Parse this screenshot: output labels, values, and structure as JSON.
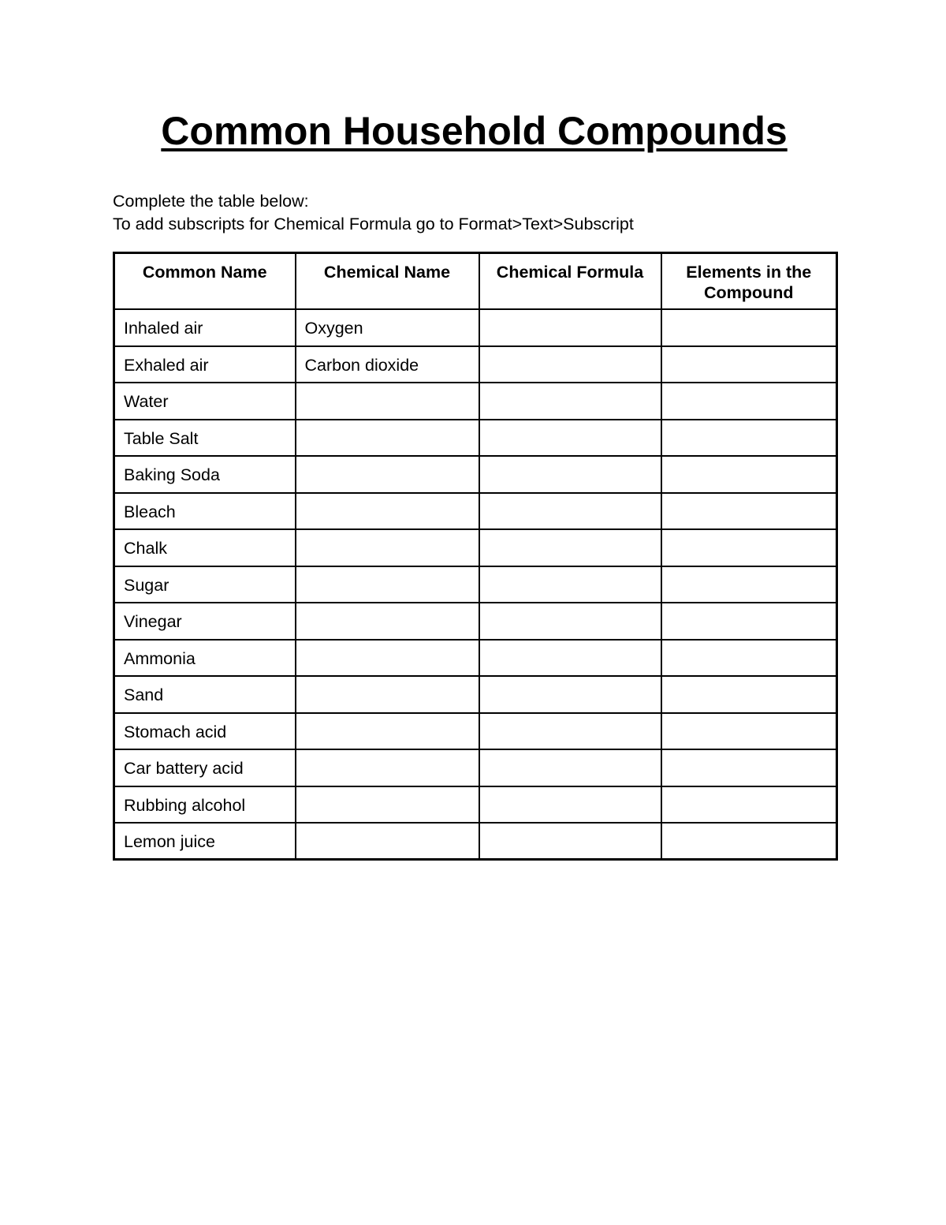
{
  "document": {
    "title": "Common Household Compounds",
    "instruction_line1": "Complete the table below:",
    "instruction_line2": "To add subscripts for Chemical Formula go to Format>Text>Subscript"
  },
  "table": {
    "headers": [
      "Common Name",
      "Chemical Name",
      "Chemical Formula",
      "Elements in the Compound"
    ],
    "column_keys": [
      "common-name",
      "chemical-name",
      "chemical-formula",
      "elements-in-compound"
    ],
    "rows": [
      [
        "Inhaled air",
        "Oxygen",
        "",
        ""
      ],
      [
        "Exhaled air",
        "Carbon dioxide",
        "",
        ""
      ],
      [
        "Water",
        "",
        "",
        ""
      ],
      [
        "Table Salt",
        "",
        "",
        ""
      ],
      [
        "Baking Soda",
        "",
        "",
        ""
      ],
      [
        "Bleach",
        "",
        "",
        ""
      ],
      [
        "Chalk",
        "",
        "",
        ""
      ],
      [
        "Sugar",
        "",
        "",
        ""
      ],
      [
        "Vinegar",
        "",
        "",
        ""
      ],
      [
        "Ammonia",
        "",
        "",
        ""
      ],
      [
        "Sand",
        "",
        "",
        ""
      ],
      [
        "Stomach acid",
        "",
        "",
        ""
      ],
      [
        "Car battery acid",
        "",
        "",
        ""
      ],
      [
        "Rubbing alcohol",
        "",
        "",
        ""
      ],
      [
        "Lemon juice",
        "",
        "",
        ""
      ]
    ]
  },
  "colors": {
    "page_background": "#ffffff",
    "text": "#000000",
    "table_border": "#000000"
  }
}
